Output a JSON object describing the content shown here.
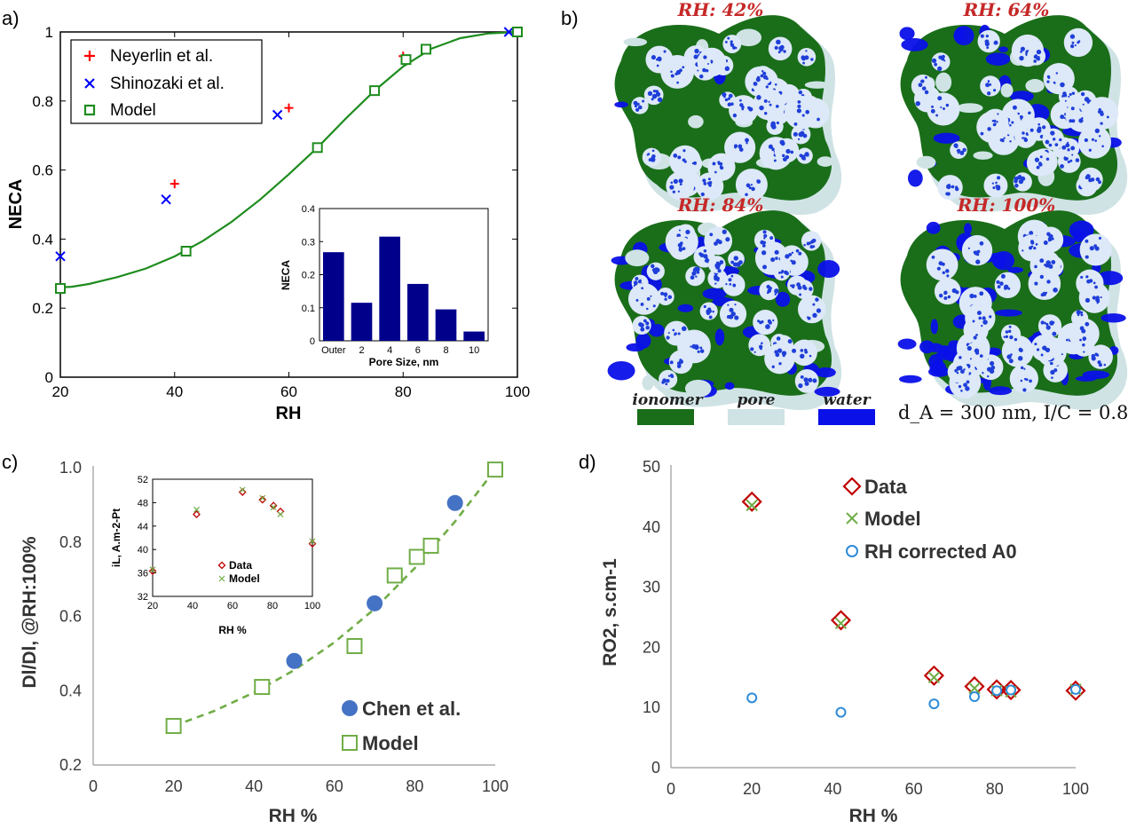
{
  "figure": {
    "panel_letters": [
      "a)",
      "b)",
      "c)",
      "d)"
    ]
  },
  "colors": {
    "neyerlin": "#ff0000",
    "shinozaki": "#0000ff",
    "model_green": "#1e8c1e",
    "chen_blue": "#4472c4",
    "model_light_green": "#70ad47",
    "data_red": "#c00000",
    "rh_blue": "#2e8bd8",
    "ionomer": "#1a6e1a",
    "pore": "#cfe3e5",
    "water": "#0a10e8",
    "inset_bar": "#00008b",
    "rh_title": "#c62828"
  },
  "panel_b": {
    "titles": [
      "RH: 42%",
      "RH: 64%",
      "RH: 84%",
      "RH: 100%"
    ],
    "legend": [
      "ionomer",
      "pore",
      "water"
    ],
    "note": "d_A = 300 nm, I/C = 0.8"
  },
  "chart_data": [
    {
      "id": "a",
      "type": "scatter",
      "xlabel": "RH",
      "ylabel": "NECA",
      "xlim": [
        20,
        100
      ],
      "ylim": [
        0,
        1
      ],
      "xticks": [
        20,
        40,
        60,
        80,
        100
      ],
      "yticks": [
        0,
        0.2,
        0.4,
        0.6,
        0.8,
        1
      ],
      "ytick_labels": [
        "0",
        "0.2",
        "0.4",
        "0.6",
        "0.8",
        "1"
      ],
      "legend": [
        "Neyerlin et al.",
        "Shinozaki et al.",
        "Model"
      ],
      "legend_position": "top-left",
      "series": [
        {
          "name": "Neyerlin et al.",
          "marker": "plus",
          "x": [
            40,
            60,
            80,
            100
          ],
          "y": [
            0.56,
            0.78,
            0.93,
            1.0
          ]
        },
        {
          "name": "Shinozaki et al.",
          "marker": "x",
          "x": [
            20,
            38.5,
            58,
            98.5
          ],
          "y": [
            0.35,
            0.515,
            0.76,
            1.0
          ]
        },
        {
          "name": "Model",
          "marker": "square",
          "x": [
            20,
            42,
            65,
            75,
            80.5,
            84,
            100
          ],
          "y": [
            0.257,
            0.365,
            0.665,
            0.83,
            0.92,
            0.95,
            1.0
          ]
        }
      ],
      "model_curve": {
        "x": [
          20,
          22,
          25,
          30,
          35,
          40,
          45,
          50,
          55,
          60,
          65,
          70,
          75,
          80,
          85,
          90,
          95,
          100
        ],
        "y": [
          0.26,
          0.262,
          0.27,
          0.29,
          0.315,
          0.35,
          0.395,
          0.45,
          0.515,
          0.588,
          0.665,
          0.75,
          0.83,
          0.9,
          0.952,
          0.982,
          0.996,
          1.0
        ]
      },
      "inset": {
        "type": "bar",
        "xlabel": "Pore Size, nm",
        "ylabel": "NECA",
        "categories": [
          "Outer",
          "2",
          "4",
          "6",
          "8",
          "10"
        ],
        "values": [
          0.268,
          0.115,
          0.315,
          0.172,
          0.095,
          0.028
        ],
        "ylim": [
          0,
          0.4
        ],
        "yticks": [
          0,
          0.1,
          0.2,
          0.3,
          0.4
        ],
        "ytick_labels": [
          "0",
          "0.1",
          "0.2",
          "0.3",
          "0.4"
        ]
      }
    },
    {
      "id": "c",
      "type": "scatter",
      "xlabel": "RH %",
      "ylabel": "Dl/Dl, @RH:100%",
      "xlim": [
        0,
        100
      ],
      "ylim": [
        0.2,
        1.0
      ],
      "xticks": [
        0,
        20,
        40,
        60,
        80,
        100
      ],
      "yticks": [
        0.2,
        0.4,
        0.6,
        0.8,
        1.0
      ],
      "ytick_labels": [
        "0.2",
        "0.4",
        "0.6",
        "0.8",
        "1.0"
      ],
      "legend": [
        "Chen et al.",
        "Model"
      ],
      "legend_position": "bottom-right",
      "series": [
        {
          "name": "Chen et al.",
          "marker": "circle",
          "x": [
            50,
            70,
            90
          ],
          "y": [
            0.48,
            0.635,
            0.905
          ]
        },
        {
          "name": "Model",
          "marker": "square",
          "x": [
            20,
            42,
            65,
            75,
            80.5,
            84,
            100
          ],
          "y": [
            0.305,
            0.41,
            0.52,
            0.71,
            0.76,
            0.79,
            0.995
          ]
        }
      ],
      "trend_curve": {
        "x": [
          20,
          30,
          40,
          50,
          60,
          70,
          80,
          90,
          100
        ],
        "y": [
          0.305,
          0.345,
          0.395,
          0.455,
          0.53,
          0.62,
          0.73,
          0.855,
          0.995
        ]
      },
      "inset": {
        "type": "scatter",
        "xlabel": "RH %",
        "ylabel": "iL, A.m-2-Pt",
        "xlim": [
          20,
          100
        ],
        "ylim": [
          32,
          52
        ],
        "xticks": [
          20,
          40,
          60,
          80,
          100
        ],
        "yticks": [
          32,
          36,
          40,
          44,
          48,
          52
        ],
        "legend": [
          "Data",
          "Model"
        ],
        "series": [
          {
            "name": "Data",
            "x": [
              20,
              42,
              65,
              75,
              80.5,
              84,
              100
            ],
            "y": [
              36.3,
              46.0,
              49.8,
              48.5,
              47.5,
              46.5,
              41.0
            ]
          },
          {
            "name": "Model",
            "x": [
              20,
              42,
              65,
              75,
              80.5,
              84,
              100
            ],
            "y": [
              36.6,
              46.8,
              50.2,
              48.8,
              47.2,
              46.0,
              41.4
            ]
          }
        ]
      }
    },
    {
      "id": "d",
      "type": "scatter",
      "xlabel": "RH %",
      "ylabel": "RO2, s.cm-1",
      "xlim": [
        0,
        100
      ],
      "ylim": [
        0,
        50
      ],
      "xticks": [
        0,
        20,
        40,
        60,
        80,
        100
      ],
      "yticks": [
        0,
        10,
        20,
        30,
        40,
        50
      ],
      "legend": [
        "Data",
        "Model",
        "RH corrected A0"
      ],
      "legend_position": "top-center",
      "series": [
        {
          "name": "Data",
          "marker": "diamond",
          "x": [
            20,
            42,
            65,
            75,
            80.5,
            84,
            100
          ],
          "y": [
            44.2,
            24.5,
            15.3,
            13.5,
            13.0,
            12.9,
            12.8
          ]
        },
        {
          "name": "Model",
          "marker": "x",
          "x": [
            20,
            42,
            65,
            75,
            80.5,
            84,
            100
          ],
          "y": [
            43.6,
            24.0,
            15.0,
            13.2,
            12.8,
            12.6,
            13.0
          ]
        },
        {
          "name": "RH corrected A0",
          "marker": "circle",
          "x": [
            20,
            42,
            65,
            75,
            80.5,
            84,
            100
          ],
          "y": [
            11.6,
            9.2,
            10.6,
            11.8,
            12.8,
            12.9,
            13.0
          ]
        }
      ]
    }
  ]
}
